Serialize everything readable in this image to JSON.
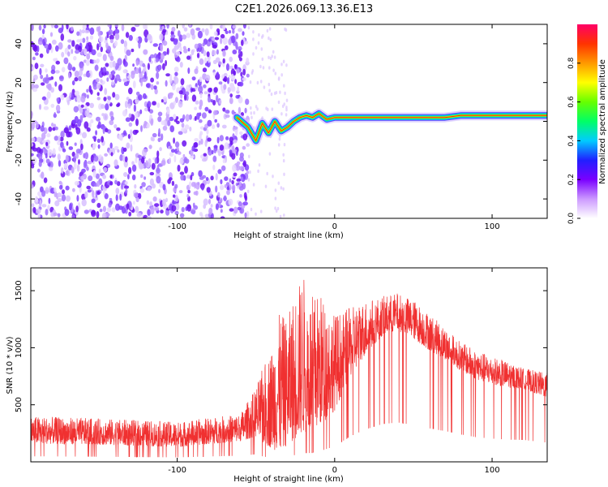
{
  "title": "C2E1.2026.069.13.36.E13",
  "chart_data": [
    {
      "type": "heatmap",
      "xlabel": "Height of straight line (km)",
      "ylabel": "Frequency (Hz)",
      "xlim": [
        -193,
        135
      ],
      "ylim": [
        -50,
        50
      ],
      "xticks": [
        -100,
        0,
        100
      ],
      "yticks": [
        -40,
        -20,
        0,
        20,
        40
      ],
      "noise_region_x": [
        -193,
        -55
      ],
      "colorbar": {
        "label": "Normalized spectral amplitude",
        "range": [
          0,
          1
        ],
        "ticks": [
          0,
          0.2,
          0.4,
          0.6,
          0.8
        ],
        "colors": [
          "#ffffff",
          "#cc99ff",
          "#7a00ff",
          "#2020ff",
          "#00ccff",
          "#00ff66",
          "#66ff00",
          "#ffff00",
          "#ff9900",
          "#ff3300",
          "#ff0066"
        ]
      },
      "trace": {
        "description": "signal track (height km, frequency Hz)",
        "x": [
          -62,
          -55,
          -50,
          -46,
          -42,
          -38,
          -34,
          -30,
          -26,
          -22,
          -18,
          -14,
          -10,
          -5,
          0,
          10,
          20,
          30,
          40,
          50,
          60,
          70,
          80,
          90,
          100,
          110,
          120,
          135
        ],
        "y": [
          2,
          -3,
          -10,
          -1,
          -6,
          0,
          -5,
          -3,
          0,
          2,
          3,
          2,
          4,
          1,
          2,
          2,
          2,
          2,
          2,
          2,
          2,
          2,
          3,
          3,
          3,
          3,
          3,
          3
        ]
      }
    },
    {
      "type": "line",
      "xlabel": "Height of straight line (km)",
      "ylabel": "SNR (10 * v/v)",
      "xlim": [
        -193,
        135
      ],
      "ylim": [
        0,
        1700
      ],
      "xticks": [
        -100,
        0,
        100
      ],
      "yticks": [
        500,
        1000,
        1500
      ],
      "color": "#f03030",
      "envelope": {
        "x": [
          -193,
          -150,
          -100,
          -60,
          -50,
          -45,
          -40,
          -35,
          -30,
          -25,
          -20,
          -15,
          -10,
          -5,
          0,
          10,
          20,
          30,
          40,
          50,
          60,
          70,
          80,
          90,
          100,
          110,
          120,
          135
        ],
        "lower": [
          160,
          150,
          130,
          180,
          220,
          150,
          120,
          80,
          150,
          200,
          250,
          260,
          300,
          380,
          450,
          750,
          950,
          1100,
          1150,
          1080,
          980,
          900,
          800,
          720,
          680,
          650,
          640,
          560
        ],
        "upper": [
          400,
          380,
          350,
          420,
          650,
          850,
          1000,
          1300,
          1250,
          1500,
          1650,
          1450,
          1500,
          1400,
          1300,
          1350,
          1420,
          1450,
          1480,
          1420,
          1300,
          1180,
          1050,
          980,
          920,
          880,
          820,
          780
        ]
      }
    }
  ]
}
